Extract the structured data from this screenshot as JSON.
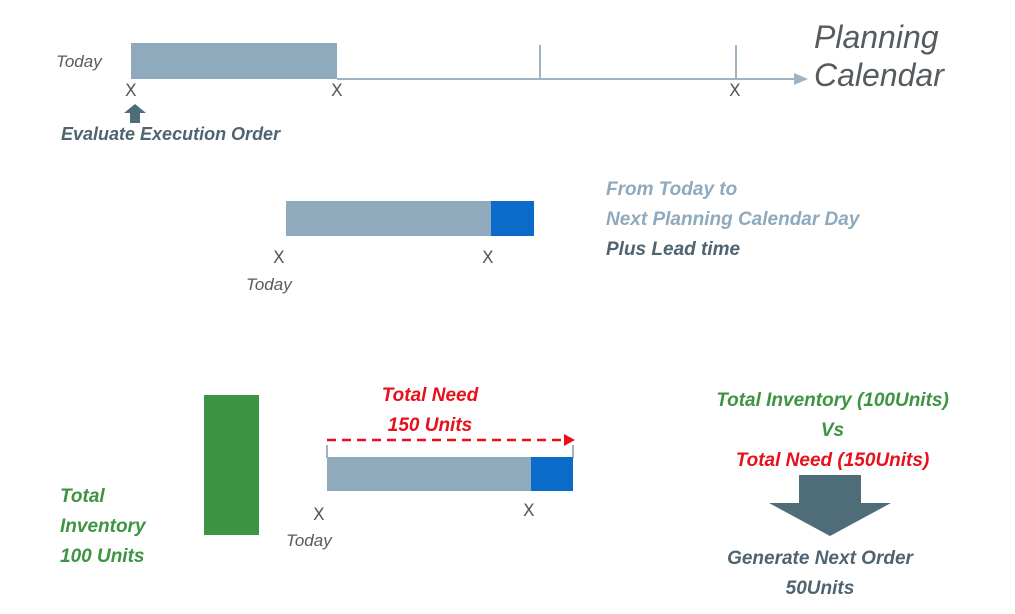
{
  "section1": {
    "today_label": "Today",
    "marker": "X",
    "evaluate_label": "Evaluate Execution Order",
    "title_line1": "Planning",
    "title_line2": "Calendar"
  },
  "section2": {
    "marker": "X",
    "today_label": "Today",
    "desc_line1": "From Today to",
    "desc_line2": "Next Planning Calendar Day",
    "desc_line3": "Plus Lead time"
  },
  "section3": {
    "inventory_line1": "Total",
    "inventory_line2": "Inventory",
    "inventory_line3": "100 Units",
    "need_line1": "Total Need",
    "need_line2": "150 Units",
    "marker": "X",
    "today_label": "Today",
    "compare_line1": "Total Inventory (100Units)",
    "compare_line2": "Vs",
    "compare_line3": "Total Need (150Units)",
    "result_line1": "Generate Next Order",
    "result_line2": "50Units"
  },
  "colors": {
    "bar": "#8fa9bd",
    "lead_time": "#0a6cc8",
    "inventory": "#3d9442",
    "need": "#e8101a",
    "arrow": "#4f6c79"
  }
}
